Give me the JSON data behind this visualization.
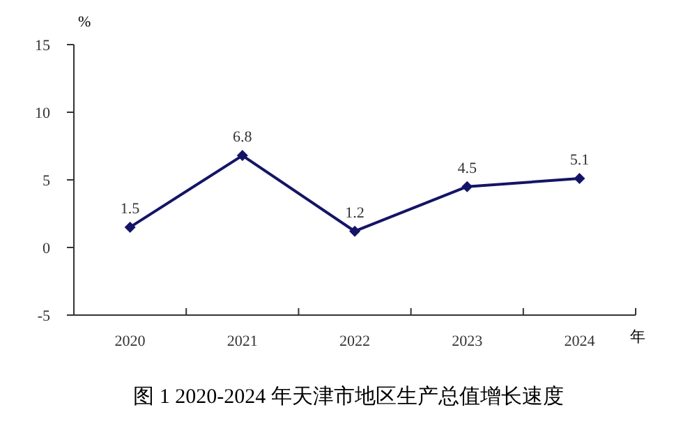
{
  "chart_data": {
    "type": "line",
    "title": "图 1 2020-2024 年天津市地区生产总值增长速度",
    "ylabel": "%",
    "xlabel": "年",
    "categories": [
      "2020",
      "2021",
      "2022",
      "2023",
      "2024"
    ],
    "series": [
      {
        "color": "#141466",
        "values": [
          1.5,
          6.8,
          1.2,
          4.5,
          5.1
        ]
      }
    ],
    "ylim": [
      -5,
      15
    ],
    "yticks": [
      -5,
      0,
      5,
      10,
      15
    ],
    "grid": false,
    "legend": false,
    "marker": "diamond",
    "line_style": "solid",
    "data_labels": true
  }
}
